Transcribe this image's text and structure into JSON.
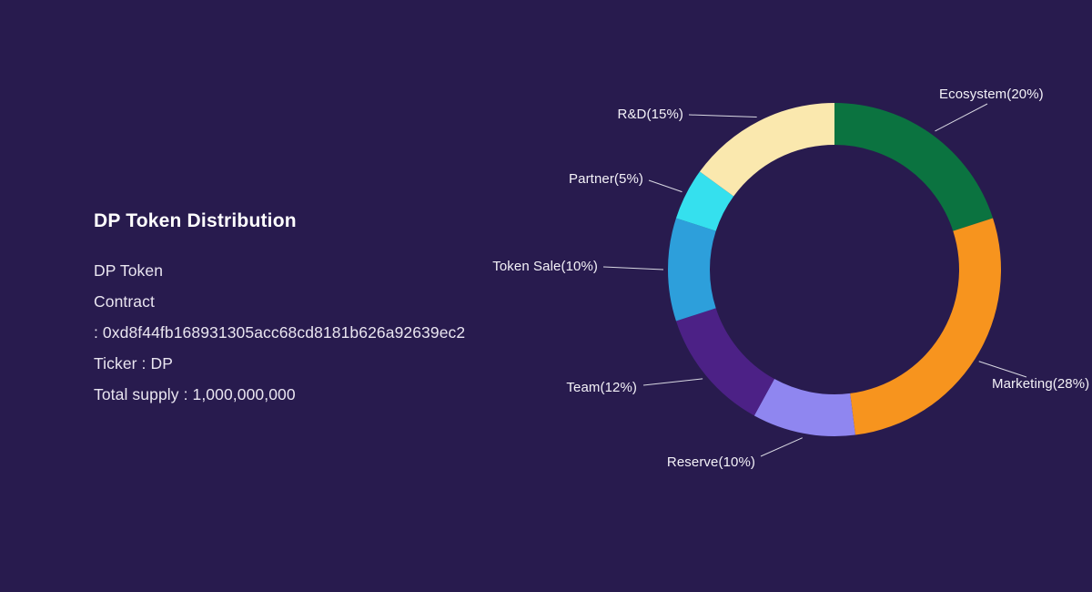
{
  "background": "#281B4E",
  "info": {
    "title": "DP Token Distribution",
    "lines": [
      "DP Token",
      "Contract",
      ": 0xd8f44fb168931305acc68cd8181b626a92639ec2",
      "Ticker : DP",
      "Total supply : 1,000,000,000"
    ]
  },
  "chart_data": {
    "type": "pie",
    "subtype": "donut",
    "title": "DP Token Distribution",
    "start_angle_deg": -90,
    "direction": "clockwise",
    "total": 100,
    "segments": [
      {
        "name": "Ecosystem",
        "label": "Ecosystem(20%)",
        "value": 20,
        "color": "#0B7340"
      },
      {
        "name": "Marketing",
        "label": "Marketing(28%)",
        "value": 28,
        "color": "#F7941E"
      },
      {
        "name": "Reserve",
        "label": "Reserve(10%)",
        "value": 10,
        "color": "#8F86F0"
      },
      {
        "name": "Team",
        "label": "Team(12%)",
        "value": 12,
        "color": "#4C2186"
      },
      {
        "name": "Token Sale",
        "label": "Token Sale(10%)",
        "value": 10,
        "color": "#2D9FDB"
      },
      {
        "name": "Partner",
        "label": "Partner(5%)",
        "value": 5,
        "color": "#35E0EE"
      },
      {
        "name": "R&D",
        "label": "R&D(15%)",
        "value": 15,
        "color": "#FAE8AE"
      }
    ],
    "leader_line_color": "#D8D8E2",
    "label_color": "#F4F2F8",
    "legend_position": "callout-labels",
    "grid": false
  }
}
